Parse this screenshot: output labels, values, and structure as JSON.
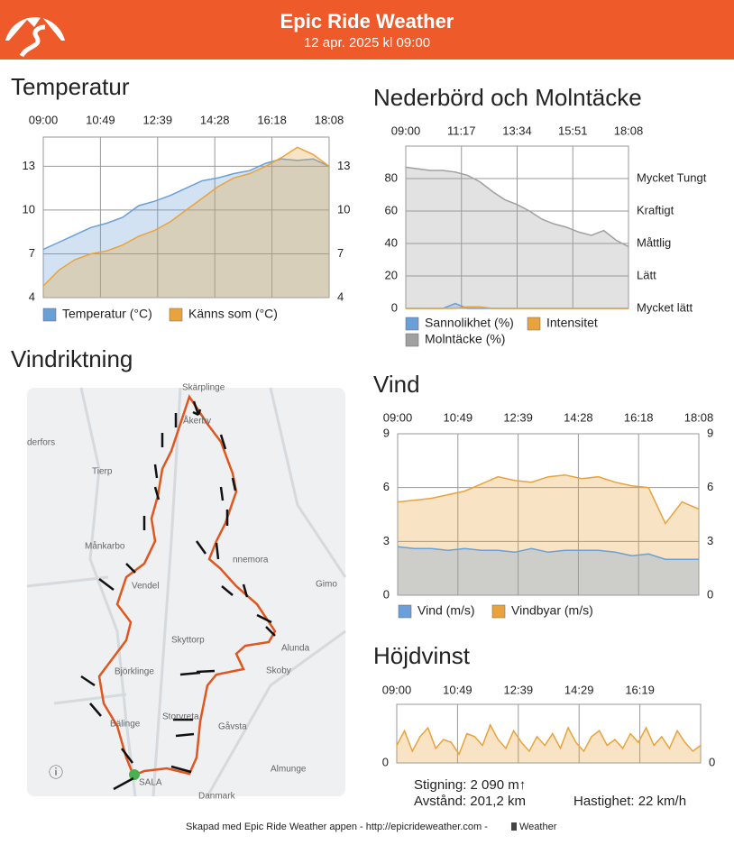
{
  "header": {
    "title": "Epic Ride Weather",
    "subtitle": "12 apr. 2025 kl 09:00"
  },
  "chart_data": [
    {
      "type": "area",
      "title": "Temperatur",
      "xticks": [
        "09:00",
        "10:49",
        "12:39",
        "14:28",
        "16:18",
        "18:08"
      ],
      "ylim": [
        4,
        15
      ],
      "yticks": [
        4,
        7,
        10,
        13
      ],
      "y2lim": [
        4,
        15
      ],
      "y2ticks": [
        4,
        7,
        10,
        13
      ],
      "grid": true,
      "series": [
        {
          "name": "Temperatur (°C)",
          "color": "#6a9fd8",
          "values": [
            7.3,
            7.8,
            8.3,
            8.8,
            9.1,
            9.5,
            10.3,
            10.6,
            11.0,
            11.5,
            12.0,
            12.2,
            12.5,
            12.7,
            13.2,
            13.5,
            13.4,
            13.5,
            13.0
          ]
        },
        {
          "name": "Känns som (°C)",
          "color": "#e8a33d",
          "values": [
            4.8,
            5.9,
            6.6,
            7.0,
            7.2,
            7.6,
            8.2,
            8.6,
            9.2,
            10.0,
            10.8,
            11.6,
            12.2,
            12.5,
            13.0,
            13.6,
            14.3,
            13.8,
            13.0
          ]
        }
      ]
    },
    {
      "type": "area",
      "title": "Nederbörd och Molntäcke",
      "xticks": [
        "09:00",
        "11:17",
        "13:34",
        "15:51",
        "18:08"
      ],
      "ylim": [
        0,
        100
      ],
      "yticks": [
        0,
        20,
        40,
        60,
        80
      ],
      "y2lim": [
        0,
        100
      ],
      "y2ticks": [
        {
          "value": 0,
          "label": "Mycket lätt"
        },
        {
          "value": 20,
          "label": "Lätt"
        },
        {
          "value": 40,
          "label": "Måttlig"
        },
        {
          "value": 60,
          "label": "Kraftigt"
        },
        {
          "value": 80,
          "label": "Mycket Tungt"
        }
      ],
      "grid": true,
      "series": [
        {
          "name": "Molntäcke (%)",
          "color": "#a0a0a0",
          "values": [
            87,
            86,
            85,
            85,
            84,
            82,
            78,
            72,
            67,
            64,
            60,
            55,
            52,
            50,
            47,
            45,
            48,
            42,
            38
          ]
        },
        {
          "name": "Sannolikhet (%)",
          "color": "#6a9fd8",
          "values": [
            0,
            0,
            0,
            0,
            3,
            0,
            0,
            0,
            0,
            0,
            0,
            0,
            0,
            0,
            0,
            0,
            0,
            0,
            0
          ]
        },
        {
          "name": "Intensitet",
          "color": "#e8a33d",
          "values": [
            0,
            0,
            0,
            0,
            0,
            1,
            1,
            0,
            0,
            0,
            0,
            0,
            0,
            0,
            0,
            0,
            0,
            0,
            0
          ]
        }
      ]
    },
    {
      "type": "area",
      "title": "Vind",
      "xticks": [
        "09:00",
        "10:49",
        "12:39",
        "14:28",
        "16:18",
        "18:08"
      ],
      "ylim": [
        0,
        9
      ],
      "yticks": [
        0,
        3,
        6,
        9
      ],
      "y2lim": [
        0,
        9
      ],
      "y2ticks": [
        0,
        3,
        6,
        9
      ],
      "grid": true,
      "series": [
        {
          "name": "Vindbyar (m/s)",
          "color": "#e8a33d",
          "values": [
            5.2,
            5.3,
            5.4,
            5.6,
            5.8,
            6.2,
            6.6,
            6.4,
            6.3,
            6.6,
            6.7,
            6.5,
            6.6,
            6.3,
            6.1,
            6.0,
            4.0,
            5.2,
            4.8
          ]
        },
        {
          "name": "Vind (m/s)",
          "color": "#6a9fd8",
          "values": [
            2.7,
            2.6,
            2.6,
            2.5,
            2.6,
            2.5,
            2.5,
            2.4,
            2.6,
            2.4,
            2.5,
            2.5,
            2.5,
            2.4,
            2.2,
            2.3,
            2.0,
            2.0,
            2.0
          ]
        }
      ]
    },
    {
      "type": "area",
      "title": "Höjdvinst",
      "xticks": [
        "09:00",
        "10:49",
        "12:39",
        "14:29",
        "16:19"
      ],
      "ylim": [
        0,
        100
      ],
      "yticks": [
        0
      ],
      "y2lim": [
        0,
        100
      ],
      "y2ticks": [
        0
      ],
      "grid": true,
      "series": [
        {
          "color": "#e8a33d",
          "values": [
            30,
            55,
            20,
            45,
            60,
            25,
            40,
            35,
            15,
            50,
            45,
            30,
            65,
            40,
            25,
            55,
            35,
            20,
            45,
            30,
            50,
            25,
            60,
            35,
            20,
            45,
            55,
            30,
            40,
            25,
            50,
            35,
            60,
            30,
            45,
            25,
            55,
            35,
            20,
            30
          ]
        }
      ]
    }
  ],
  "map": {
    "title": "Vindriktning",
    "places": [
      "Skärplinge",
      "Åkerby",
      "derfors",
      "Tierp",
      "Månkarbo",
      "Vendel",
      "nnemora",
      "Gimo",
      "Alunda",
      "Skyttorp",
      "Skoby",
      "Björklinge",
      "Bälinge",
      "Storvreta",
      "Gåvsta",
      "Almunge",
      "SALA",
      "Danmark"
    ]
  },
  "stats": {
    "climb": "Stigning: 2 090 m↑",
    "distance": "Avstånd: 201,2 km",
    "speed": "Hastighet: 22 km/h"
  },
  "footer": {
    "text": "Skapad med Epic Ride Weather appen - http://epicrideweather.com - ",
    "brand": "Weather"
  }
}
